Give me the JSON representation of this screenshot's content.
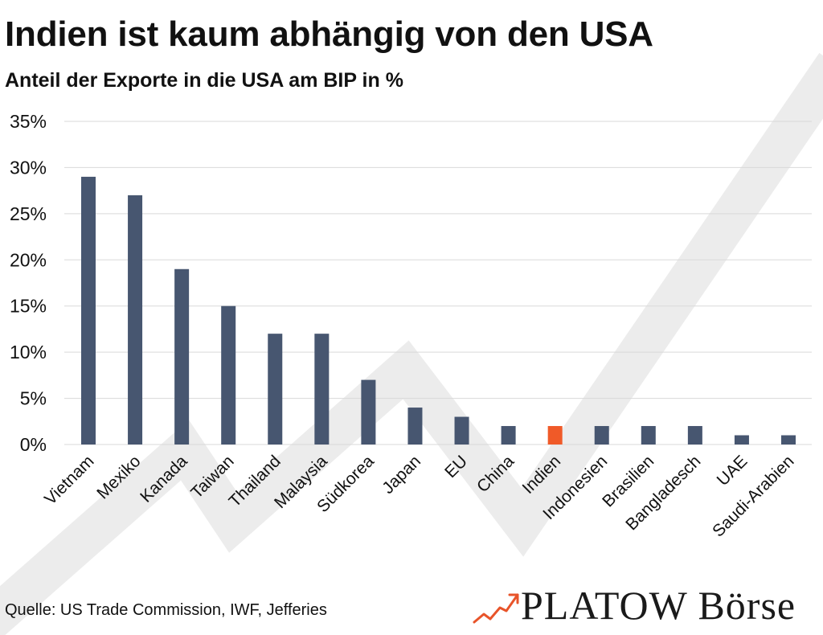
{
  "header": {
    "title": "Indien ist kaum abhängig von den USA",
    "subtitle": "Anteil der Exporte in die USA am BIP in %"
  },
  "footer": {
    "source": "Quelle: US Trade Commission, IWF, Jefferies",
    "brand": "PLATOW Börse"
  },
  "icons": {
    "brand_icon": "trend-arrow-icon"
  },
  "colors": {
    "bar": "#475670",
    "highlight": "#f05a28",
    "grid": "#d9d9d9",
    "watermark": "#ececec",
    "brand_accent": "#e8542a"
  },
  "chart_data": {
    "type": "bar",
    "title": "Indien ist kaum abhängig von den USA",
    "subtitle": "Anteil der Exporte in die USA am BIP in %",
    "xlabel": "",
    "ylabel": "",
    "categories": [
      "Vietnam",
      "Mexiko",
      "Kanada",
      "Taiwan",
      "Thailand",
      "Malaysia",
      "Südkorea",
      "Japan",
      "EU",
      "China",
      "Indien",
      "Indonesien",
      "Brasilien",
      "Bangladesch",
      "UAE",
      "Saudi-Arabien"
    ],
    "values": [
      29,
      27,
      19,
      15,
      12,
      12,
      7,
      4,
      3,
      2,
      2,
      2,
      2,
      2,
      1,
      1
    ],
    "highlight_category": "Indien",
    "ylim": [
      0,
      35
    ],
    "yticks": [
      0,
      5,
      10,
      15,
      20,
      25,
      30,
      35
    ],
    "ytick_labels": [
      "0%",
      "5%",
      "10%",
      "15%",
      "20%",
      "25%",
      "30%",
      "35%"
    ],
    "grid": true,
    "legend": "none"
  }
}
